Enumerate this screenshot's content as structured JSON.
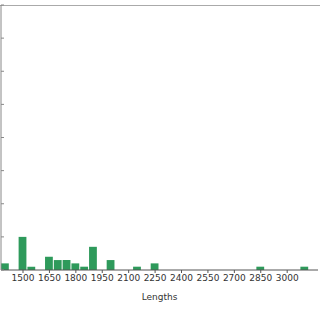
{
  "chart_data": {
    "type": "histogram",
    "xlabel": "Lengths",
    "bins": [
      1375,
      1425,
      1475,
      1525,
      1575,
      1625,
      1675,
      1725,
      1775,
      1825,
      1875,
      1925,
      1975,
      2025,
      2075,
      2125,
      2175,
      2225,
      2275,
      2325,
      2375,
      2425,
      2475,
      2525,
      2575,
      2625,
      2675,
      2725,
      2775,
      2825,
      2875,
      2925,
      2975,
      3025,
      3075,
      3125,
      3175
    ],
    "counts": [
      2,
      0,
      10,
      1,
      0,
      4,
      3,
      3,
      2,
      1,
      7,
      0,
      3,
      0,
      0,
      1,
      0,
      2,
      0,
      0,
      0,
      0,
      0,
      0,
      0,
      0,
      0,
      0,
      0,
      1,
      0,
      0,
      0,
      0,
      1,
      0
    ],
    "color": "#2e9a5b",
    "xlim": [
      1375,
      3175
    ],
    "xticks": [
      1500,
      1650,
      1800,
      1950,
      2100,
      2250,
      2400,
      2550,
      2700,
      2850,
      3000
    ],
    "ylim": [
      0,
      80
    ],
    "yticks": [
      0,
      10,
      20,
      30,
      40,
      50,
      60,
      70,
      80
    ],
    "tick_labels": "x"
  }
}
